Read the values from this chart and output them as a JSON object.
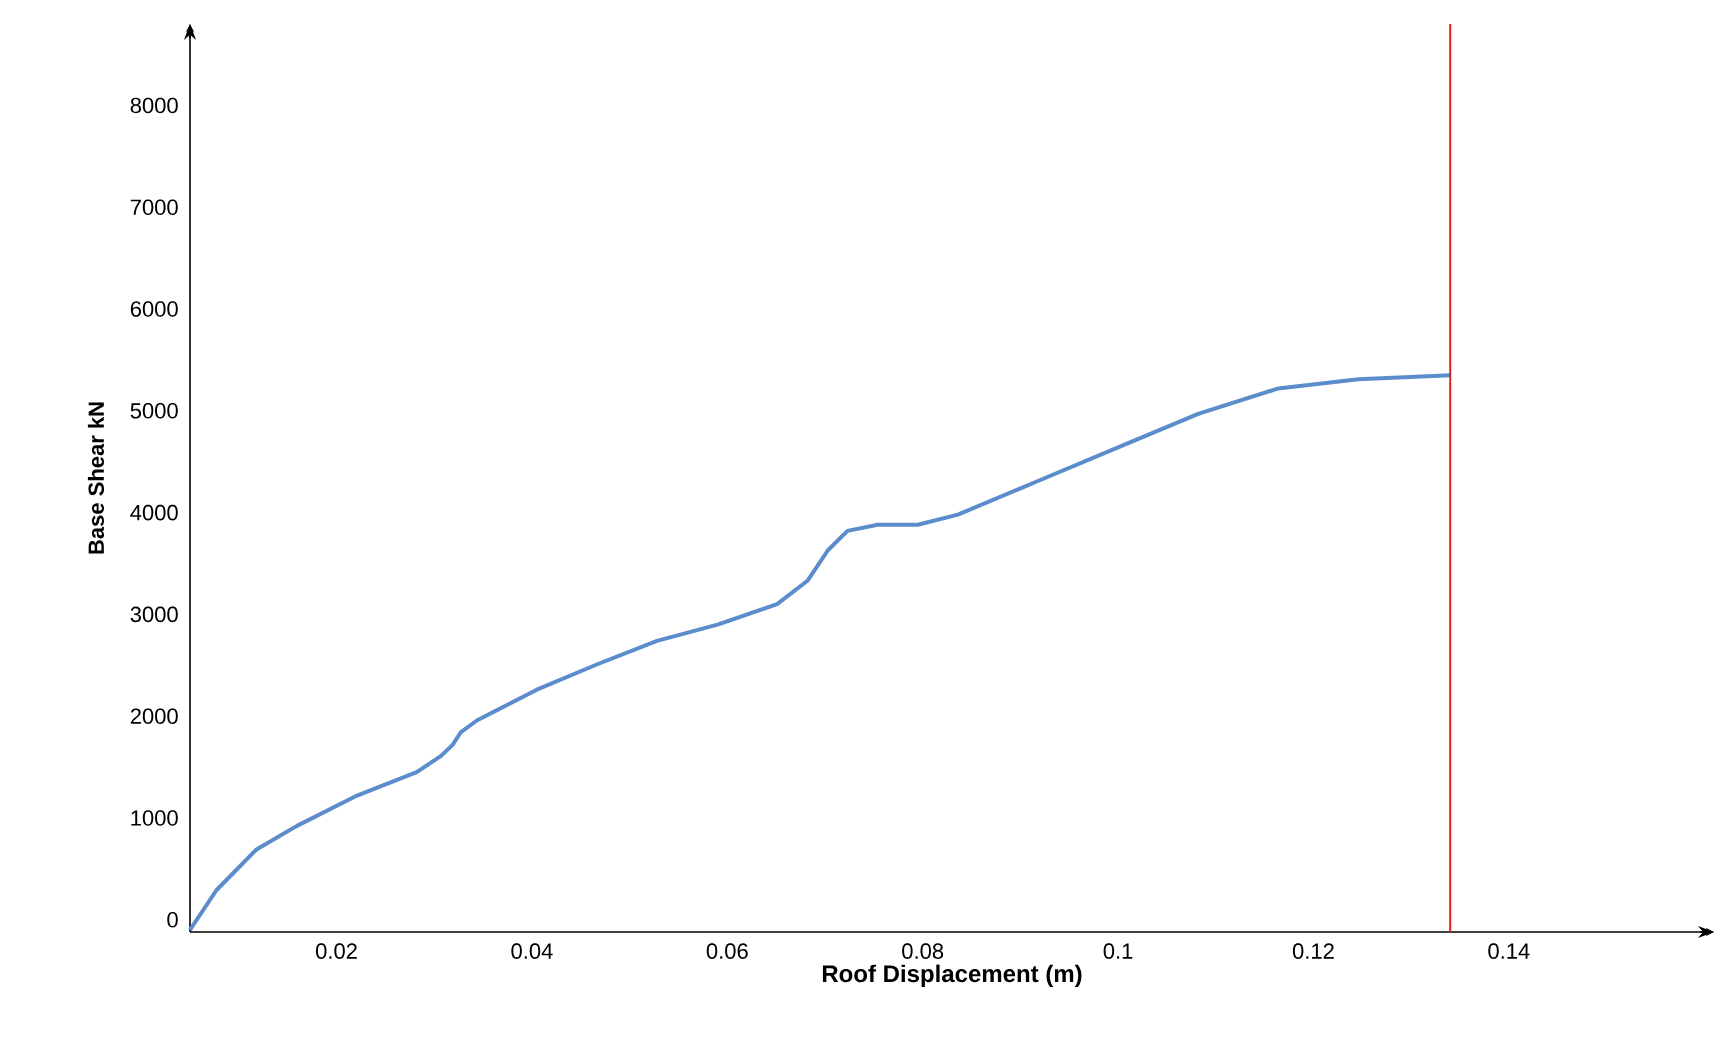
{
  "chart_data": {
    "type": "line",
    "xlabel": "Roof Displacement (m)",
    "ylabel": "Base Shear kN",
    "xlim": [
      0.005,
      0.161
    ],
    "ylim": [
      -120,
      8800
    ],
    "xticks": [
      0.02,
      0.04,
      0.06,
      0.08,
      0.1,
      0.12,
      0.14
    ],
    "yticks": [
      0,
      1000,
      2000,
      3000,
      4000,
      5000,
      6000,
      7000,
      8000
    ],
    "x": [
      0.005,
      0.0077,
      0.0118,
      0.0159,
      0.0221,
      0.0282,
      0.0307,
      0.0319,
      0.0327,
      0.0344,
      0.0405,
      0.0467,
      0.0528,
      0.059,
      0.0651,
      0.0682,
      0.0703,
      0.0723,
      0.0754,
      0.0795,
      0.0836,
      0.0918,
      0.1,
      0.1082,
      0.1164,
      0.1246,
      0.134
    ],
    "series": [
      {
        "color": "#5b8ccc",
        "values": [
          -100,
          290,
          690,
          920,
          1220,
          1450,
          1610,
          1720,
          1840,
          1960,
          2260,
          2510,
          2740,
          2900,
          3100,
          3330,
          3630,
          3820,
          3880,
          3880,
          3980,
          4310,
          4640,
          4970,
          5220,
          5310,
          5350
        ]
      }
    ],
    "ref_lines": [
      {
        "axis": "x",
        "value": 0.134,
        "color": "#e02020"
      }
    ]
  }
}
